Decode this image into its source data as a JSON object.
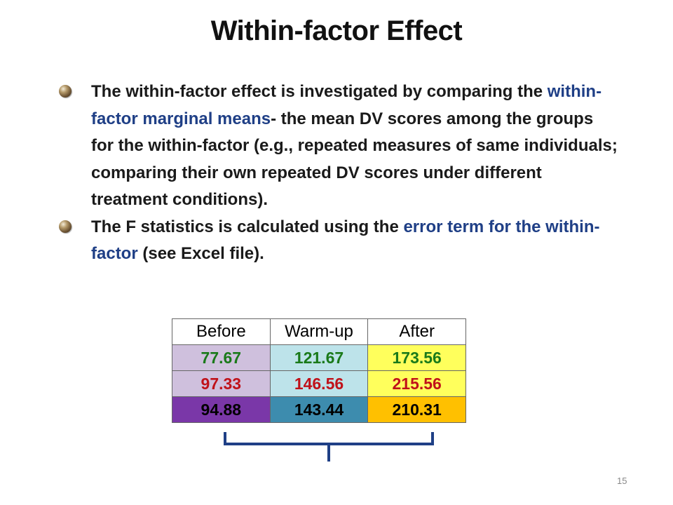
{
  "slide": {
    "title": "Within-factor Effect",
    "page_number": "15"
  },
  "bullets": [
    {
      "pre": "The within-factor effect is investigated by comparing the ",
      "highlight": "within-factor marginal means",
      "post": "- the mean DV scores among the groups for the within-factor (e.g., repeated measures of same individuals; comparing their own repeated DV scores under different treatment conditions)."
    },
    {
      "pre": "The F statistics is calculated using the ",
      "highlight": "error term for the within-factor",
      "post": " (see Excel file)."
    }
  ],
  "table": {
    "headers": [
      "Before",
      "Warm-up",
      "After"
    ],
    "rows": [
      [
        "77.67",
        "121.67",
        "173.56"
      ],
      [
        "97.33",
        "146.56",
        "215.56"
      ],
      [
        "94.88",
        "143.44",
        "210.31"
      ]
    ]
  },
  "colors": {
    "highlight_text": "#1f3f86",
    "row1_text": "#1a7a1a",
    "row2_text": "#c0121a",
    "row3_text": "#000000",
    "bracket": "#1f3f86"
  }
}
